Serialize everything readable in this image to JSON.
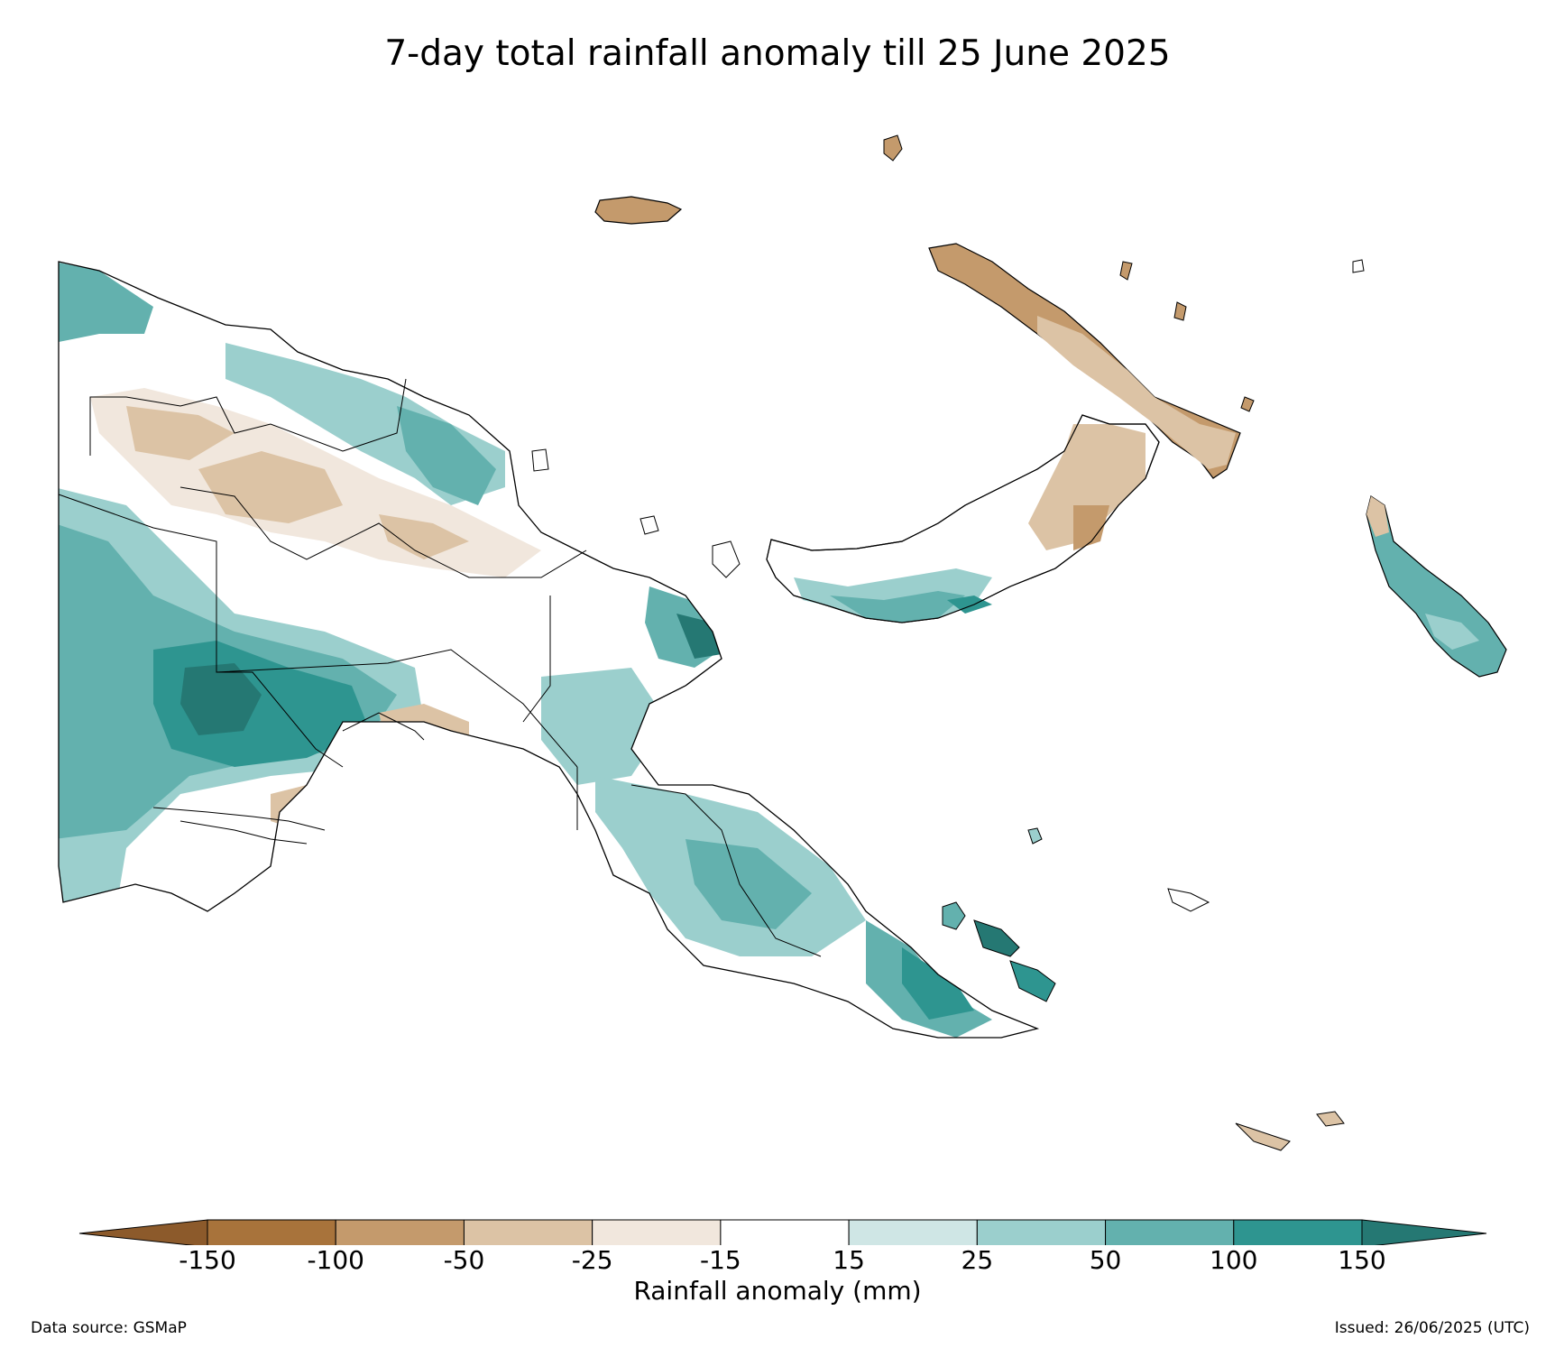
{
  "title": "7-day total rainfall anomaly till 25 June 2025",
  "colorbar": {
    "label": "Rainfall anomaly (mm)",
    "ticks": [
      "-150",
      "-100",
      "-50",
      "-25",
      "-15",
      "15",
      "25",
      "50",
      "100",
      "150"
    ],
    "colors": [
      "#8c5a2b",
      "#a8733b",
      "#c49a6c",
      "#dcc3a5",
      "#f1e7dd",
      "#ffffff",
      "#cfe6e5",
      "#9bcfcd",
      "#63b1ae",
      "#2e9590",
      "#257873"
    ],
    "extend": "both"
  },
  "footer": {
    "source": "Data source: GSMaP",
    "issued": "Issued: 26/06/2025 (UTC)"
  },
  "map": {
    "region": "Papua New Guinea",
    "legend_classes": [
      "< -150",
      "-150 to -100",
      "-100 to -50",
      "-50 to -25",
      "-25 to -15",
      "-15 to 15",
      "15 to 25",
      "25 to 50",
      "50 to 100",
      "100 to 150",
      "> 150"
    ]
  }
}
